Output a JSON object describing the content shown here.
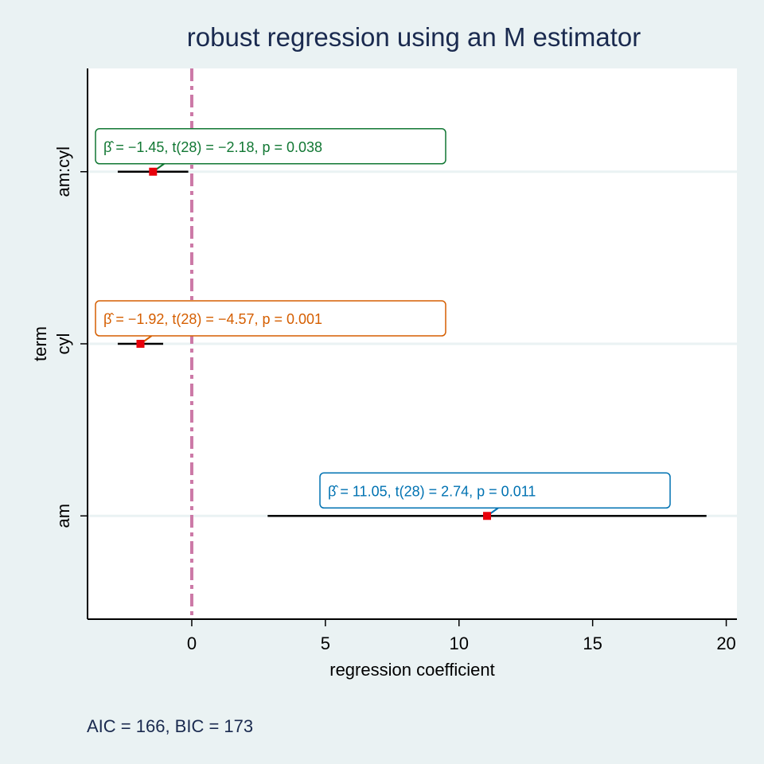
{
  "chart_data": {
    "type": "scatter",
    "title": "robust regression using an M estimator",
    "xlabel": "regression coefficient",
    "ylabel": "term",
    "xlim": [
      -3.9,
      20.4
    ],
    "xticks": [
      0,
      5,
      10,
      15,
      20
    ],
    "grid": "horizontal",
    "reference_line": {
      "x": 0,
      "color": "#cc79a7",
      "style": "dash-dot"
    },
    "terms": [
      {
        "name": "am:cyl",
        "estimate": -1.45,
        "ci": [
          -2.77,
          -0.13
        ],
        "label": "β̂ = −1.45, t(28) = −2.18, p = 0.038",
        "color": "#117733"
      },
      {
        "name": "cyl",
        "estimate": -1.92,
        "ci": [
          -2.77,
          -1.07
        ],
        "label": "β̂ = −1.92, t(28) = −4.57, p = 0.001",
        "color": "#d55e00"
      },
      {
        "name": "am",
        "estimate": 11.05,
        "ci": [
          2.84,
          19.26
        ],
        "label": "β̂ = 11.05, t(28) = 2.74, p = 0.011",
        "color": "#0072b2"
      }
    ]
  },
  "footer": {
    "caption": "AIC = 166, BIC = 173"
  }
}
